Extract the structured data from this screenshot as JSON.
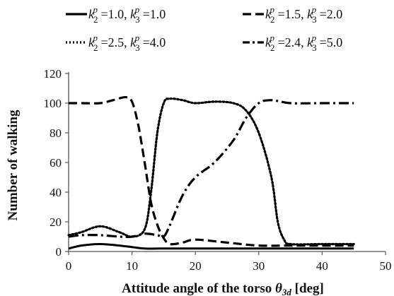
{
  "chart_data": {
    "type": "line",
    "xlabel": "Attitude angle of the torso",
    "xlabel_symbol": "θ",
    "xlabel_symbol_sub": "3d",
    "xlabel_unit": "[deg]",
    "ylabel": "Number of walking",
    "xlim": [
      0,
      50
    ],
    "ylim": [
      0,
      120
    ],
    "x_ticks": [
      "0",
      "10",
      "20",
      "30",
      "40",
      "50"
    ],
    "y_ticks": [
      "0",
      "20",
      "40",
      "60",
      "80",
      "100",
      "120"
    ],
    "grid": false,
    "legend_position": "top",
    "series": [
      {
        "legend": {
          "k2_sup": "p",
          "k2": "1.0",
          "k3_sup": "p",
          "k3": "1.0"
        },
        "style": "solid",
        "x": [
          0,
          2,
          5,
          8,
          10,
          12,
          15,
          20,
          25,
          30,
          35,
          40,
          45
        ],
        "y": [
          2,
          4,
          5,
          4,
          3,
          2,
          2,
          2,
          2,
          2,
          2,
          2,
          2
        ]
      },
      {
        "legend": {
          "k2_sup": "p",
          "k2": "1.5",
          "k3_sup": "p",
          "k3": "2.0"
        },
        "style": "dashed",
        "x": [
          0,
          2,
          5,
          7,
          9,
          10,
          11,
          12,
          13,
          14,
          15,
          16,
          18,
          20,
          25,
          30,
          35,
          40,
          45
        ],
        "y": [
          100,
          100,
          100,
          102,
          104,
          101,
          85,
          60,
          33,
          18,
          9,
          5,
          6,
          8,
          6,
          4,
          4,
          4,
          4
        ]
      },
      {
        "legend": {
          "k2_sup": "p",
          "k2": "2.5",
          "k3_sup": "p",
          "k3": "4.0"
        },
        "style": "dotted",
        "x": [
          0,
          2,
          5,
          8,
          10,
          12,
          13,
          14,
          15,
          16,
          18,
          20,
          23,
          26,
          28,
          30,
          32,
          33,
          34,
          35,
          40,
          45
        ],
        "y": [
          11,
          13,
          17,
          13,
          10,
          15,
          40,
          80,
          100,
          103,
          102,
          100,
          101,
          100,
          95,
          80,
          50,
          20,
          8,
          5,
          5,
          5
        ]
      },
      {
        "legend": {
          "k2_sup": "p",
          "k2": "2.4",
          "k3_sup": "p",
          "k3": "5.0"
        },
        "style": "dash-dot",
        "x": [
          0,
          2,
          5,
          8,
          10,
          12,
          14,
          15,
          16,
          18,
          20,
          23,
          26,
          28,
          30,
          32,
          35,
          40,
          45
        ],
        "y": [
          10,
          11,
          11,
          10,
          10,
          12,
          11,
          10,
          18,
          38,
          50,
          60,
          75,
          90,
          100,
          102,
          100,
          100,
          100
        ]
      }
    ]
  }
}
